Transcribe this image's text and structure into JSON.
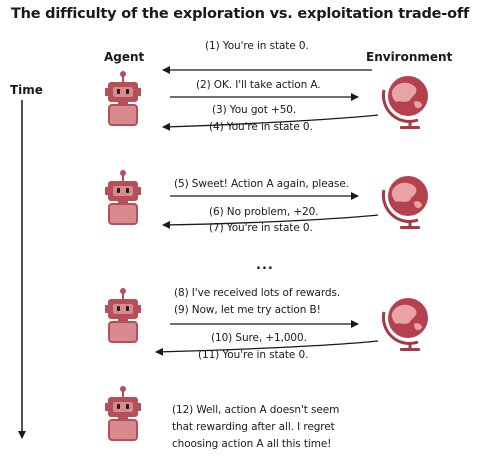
{
  "title": "The difficulty of the exploration vs. exploitation trade-off",
  "labels": {
    "agent": "Agent",
    "environment": "Environment",
    "time": "Time"
  },
  "messages": {
    "m1": "(1) You're in state 0.",
    "m2": "(2) OK. I'll take action A.",
    "m3": "(3) You got +50.",
    "m4": "(4) You're in state 0.",
    "m5": "(5) Sweet! Action A again, please.",
    "m6": "(6) No problem, +20.",
    "m7": "(7) You're in state 0.",
    "m8": "(8) I've received lots of rewards.",
    "m9": "(9) Now, let me try action B!",
    "m10": "(10) Sure, +1,000.",
    "m11": "(11) You're in state 0.",
    "m12a": "(12) Well, action A doesn't seem",
    "m12b": "that rewarding after all. I regret",
    "m12c": "choosing action A all this time!"
  },
  "ellipsis": "...",
  "colors": {
    "robot": "#b5505a",
    "robot_light": "#d98a8e",
    "globe": "#b5404e",
    "globe_land": "#e7a3a6",
    "stand": "#a33a44"
  }
}
